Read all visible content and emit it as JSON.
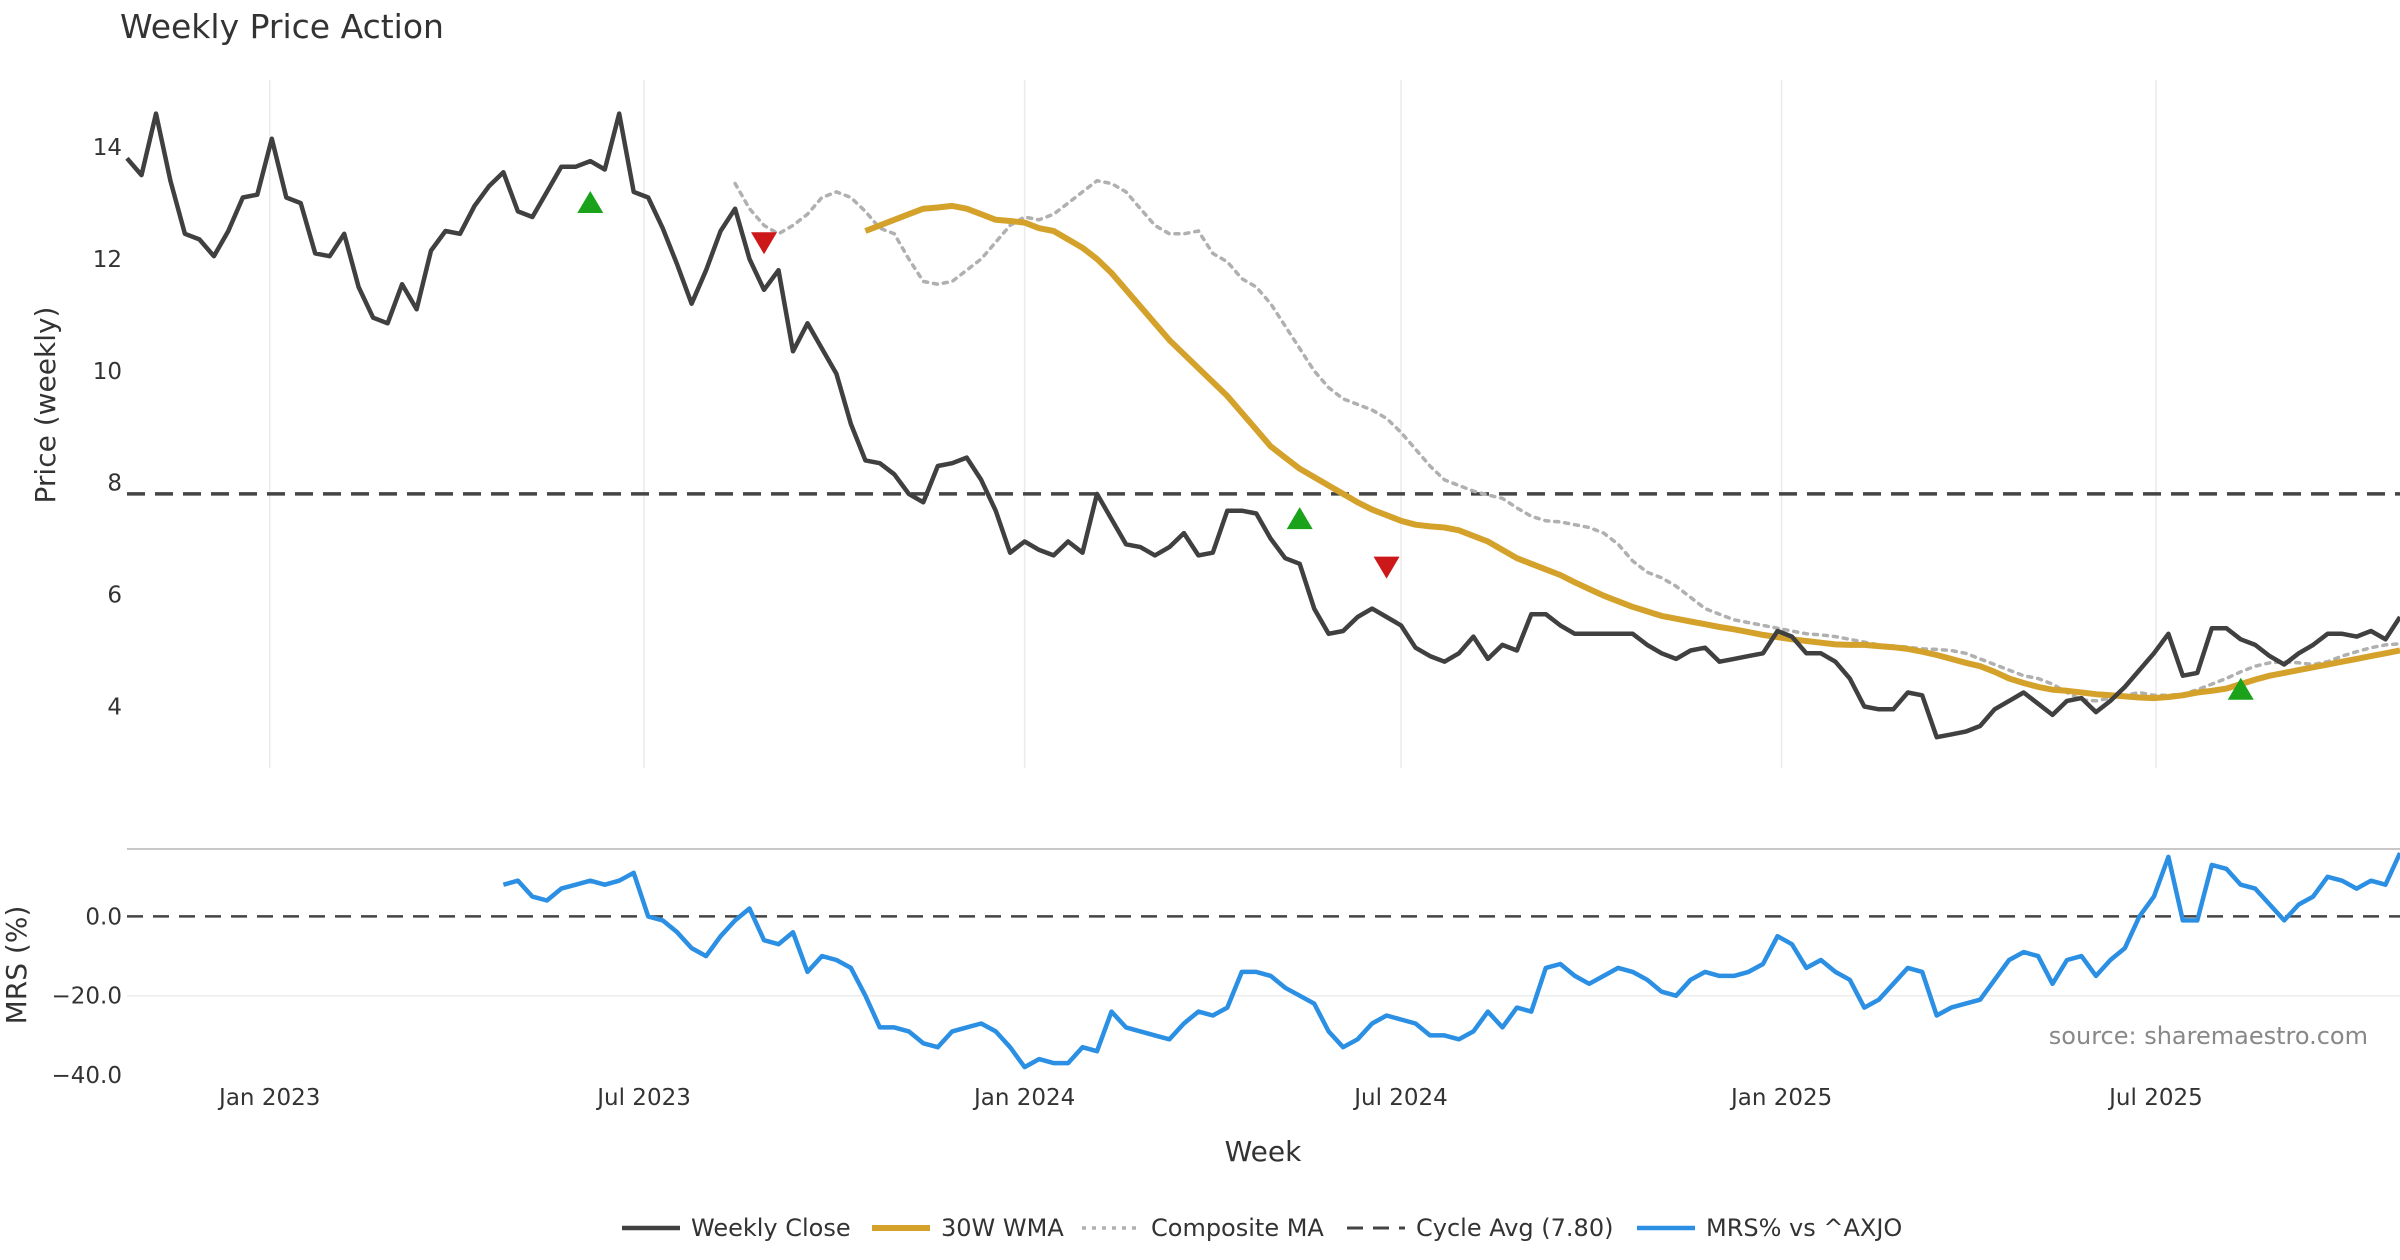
{
  "chart_data": {
    "type": "line",
    "title": "Weekly Price Action",
    "xlabel": "Week",
    "source": "source: sharemaestro.com",
    "x_ticks": [
      "Jan 2023",
      "Jul 2023",
      "Jan 2024",
      "Jul 2024",
      "Jan 2025",
      "Jul 2025"
    ],
    "x_range": [
      "2022-10-24",
      "2025-10-27"
    ],
    "price_panel": {
      "ylabel": "Price (weekly)",
      "ylim": [
        2.9,
        15.2
      ],
      "y_ticks": [
        4,
        6,
        8,
        10,
        12,
        14
      ],
      "cycle_avg": 7.8,
      "weekly_close": [
        13.8,
        13.5,
        14.6,
        13.4,
        12.45,
        12.35,
        12.05,
        12.5,
        13.1,
        13.15,
        14.15,
        13.1,
        13.0,
        12.1,
        12.05,
        12.45,
        11.5,
        10.95,
        10.85,
        11.55,
        11.1,
        12.15,
        12.5,
        12.45,
        12.95,
        13.3,
        13.55,
        12.85,
        12.75,
        13.2,
        13.65,
        13.65,
        13.75,
        13.6,
        14.6,
        13.2,
        13.1,
        12.55,
        11.9,
        11.2,
        11.8,
        12.5,
        12.9,
        12.0,
        11.45,
        11.8,
        10.35,
        10.85,
        10.4,
        9.95,
        9.05,
        8.4,
        8.35,
        8.15,
        7.8,
        7.65,
        8.3,
        8.35,
        8.45,
        8.05,
        7.5,
        6.75,
        6.95,
        6.8,
        6.7,
        6.95,
        6.75,
        7.8,
        7.35,
        6.9,
        6.85,
        6.7,
        6.85,
        7.1,
        6.7,
        6.75,
        7.5,
        7.5,
        7.45,
        7.0,
        6.65,
        6.55,
        5.75,
        5.3,
        5.35,
        5.6,
        5.75,
        5.6,
        5.45,
        5.05,
        4.9,
        4.8,
        4.95,
        5.25,
        4.85,
        5.1,
        5.0,
        5.65,
        5.65,
        5.45,
        5.3,
        5.3,
        5.3,
        5.3,
        5.3,
        5.1,
        4.95,
        4.85,
        5.0,
        5.05,
        4.8,
        4.85,
        4.9,
        4.95,
        5.35,
        5.25,
        4.95,
        4.95,
        4.8,
        4.5,
        4.0,
        3.95,
        3.95,
        4.25,
        4.2,
        3.45,
        3.5,
        3.55,
        3.65,
        3.95,
        4.1,
        4.25,
        4.05,
        3.85,
        4.1,
        4.15,
        3.9,
        4.1,
        4.35,
        4.65,
        4.95,
        5.3,
        4.55,
        4.6,
        5.4,
        5.4,
        5.2,
        5.1,
        4.9,
        4.75,
        4.95,
        5.1,
        5.3,
        5.3,
        5.25,
        5.35,
        5.2,
        5.6
      ],
      "wma_30w": [
        12.5,
        12.6,
        12.7,
        12.8,
        12.9,
        12.92,
        12.95,
        12.9,
        12.8,
        12.7,
        12.68,
        12.65,
        12.55,
        12.5,
        12.35,
        12.2,
        12.0,
        11.75,
        11.45,
        11.15,
        10.85,
        10.55,
        10.3,
        10.05,
        9.8,
        9.55,
        9.25,
        8.95,
        8.65,
        8.45,
        8.25,
        8.1,
        7.95,
        7.8,
        7.65,
        7.52,
        7.42,
        7.32,
        7.25,
        7.22,
        7.2,
        7.15,
        7.05,
        6.95,
        6.8,
        6.65,
        6.55,
        6.45,
        6.35,
        6.22,
        6.1,
        5.98,
        5.88,
        5.78,
        5.7,
        5.62,
        5.57,
        5.52,
        5.47,
        5.42,
        5.38,
        5.33,
        5.28,
        5.24,
        5.2,
        5.17,
        5.14,
        5.11,
        5.1,
        5.1,
        5.08,
        5.06,
        5.03,
        4.98,
        4.92,
        4.85,
        4.78,
        4.72,
        4.62,
        4.5,
        4.42,
        4.35,
        4.3,
        4.28,
        4.25,
        4.22,
        4.2,
        4.18,
        4.16,
        4.15,
        4.17,
        4.2,
        4.25,
        4.28,
        4.32,
        4.4,
        4.48,
        4.55,
        4.6,
        4.65,
        4.7,
        4.75,
        4.8,
        4.85,
        4.9,
        4.95,
        5.0
      ],
      "composite_ma": [
        13.35,
        12.9,
        12.6,
        12.45,
        12.6,
        12.8,
        13.1,
        13.2,
        13.1,
        12.85,
        12.55,
        12.45,
        12.0,
        11.6,
        11.55,
        11.6,
        11.8,
        12.0,
        12.3,
        12.6,
        12.75,
        12.7,
        12.8,
        13.0,
        13.2,
        13.4,
        13.35,
        13.2,
        12.9,
        12.6,
        12.45,
        12.45,
        12.5,
        12.1,
        11.95,
        11.65,
        11.5,
        11.2,
        10.8,
        10.4,
        10.0,
        9.7,
        9.5,
        9.4,
        9.3,
        9.15,
        8.9,
        8.6,
        8.3,
        8.05,
        7.95,
        7.85,
        7.78,
        7.72,
        7.55,
        7.4,
        7.32,
        7.3,
        7.25,
        7.2,
        7.1,
        6.9,
        6.6,
        6.4,
        6.3,
        6.15,
        5.95,
        5.75,
        5.65,
        5.55,
        5.5,
        5.45,
        5.4,
        5.35,
        5.3,
        5.28,
        5.25,
        5.2,
        5.15,
        5.1,
        5.08,
        5.06,
        5.03,
        5.02,
        5.0,
        4.95,
        4.85,
        4.75,
        4.65,
        4.55,
        4.5,
        4.4,
        4.25,
        4.12,
        4.1,
        4.15,
        4.2,
        4.25,
        4.2,
        4.2,
        4.22,
        4.3,
        4.4,
        4.5,
        4.62,
        4.72,
        4.78,
        4.8,
        4.78,
        4.75,
        4.8,
        4.9,
        4.98,
        5.05,
        5.1,
        5.12
      ],
      "buy_signals": [
        {
          "week": 32,
          "price": 13.0
        },
        {
          "week": 81,
          "price": 7.35
        },
        {
          "week": 146,
          "price": 4.3
        }
      ],
      "sell_signals": [
        {
          "week": 44,
          "price": 12.3
        },
        {
          "week": 87,
          "price": 6.5
        }
      ]
    },
    "mrs_panel": {
      "ylabel": "MRS (%)",
      "ylim": [
        -40,
        17
      ],
      "y_ticks": [
        "0.0",
        "-20.0",
        "-40.0"
      ],
      "zero_line": 0,
      "start_week": 26,
      "values": [
        8,
        9,
        5,
        4,
        7,
        8,
        9,
        8,
        9,
        11,
        0,
        -1,
        -4,
        -8,
        -10,
        -5,
        -1,
        2,
        -6,
        -7,
        -4,
        -14,
        -10,
        -11,
        -13,
        -20,
        -28,
        -28,
        -29,
        -32,
        -33,
        -29,
        -28,
        -27,
        -29,
        -33,
        -38,
        -36,
        -37,
        -37,
        -33,
        -34,
        -24,
        -28,
        -29,
        -30,
        -31,
        -27,
        -24,
        -25,
        -23,
        -14,
        -14,
        -15,
        -18,
        -20,
        -22,
        -29,
        -33,
        -31,
        -27,
        -25,
        -26,
        -27,
        -30,
        -30,
        -31,
        -29,
        -24,
        -28,
        -23,
        -24,
        -13,
        -12,
        -15,
        -17,
        -15,
        -13,
        -14,
        -16,
        -19,
        -20,
        -16,
        -14,
        -15,
        -15,
        -14,
        -12,
        -5,
        -7,
        -13,
        -11,
        -14,
        -16,
        -23,
        -21,
        -17,
        -13,
        -14,
        -25,
        -23,
        -22,
        -21,
        -16,
        -11,
        -9,
        -10,
        -17,
        -11,
        -10,
        -15,
        -11,
        -8,
        0,
        5,
        15,
        -1,
        -1,
        13,
        12,
        8,
        7,
        3,
        -1,
        3,
        5,
        10,
        9,
        7,
        9,
        8,
        16
      ]
    },
    "legend": [
      {
        "label": "Weekly Close",
        "color": "#404040",
        "style": "solid"
      },
      {
        "label": "30W WMA",
        "color": "#d4a22b",
        "style": "solid"
      },
      {
        "label": "Composite MA",
        "color": "#b0b0b0",
        "style": "dotted"
      },
      {
        "label": "Cycle Avg (7.80)",
        "color": "#444444",
        "style": "dashed"
      },
      {
        "label": "MRS% vs ^AXJO",
        "color": "#2b8fe3",
        "style": "solid"
      }
    ],
    "colors": {
      "close": "#404040",
      "wma": "#d4a22b",
      "composite": "#b0b0b0",
      "cycle": "#444444",
      "mrs": "#2b8fe3",
      "buy": "#1aa31a",
      "sell": "#cc1818"
    }
  }
}
